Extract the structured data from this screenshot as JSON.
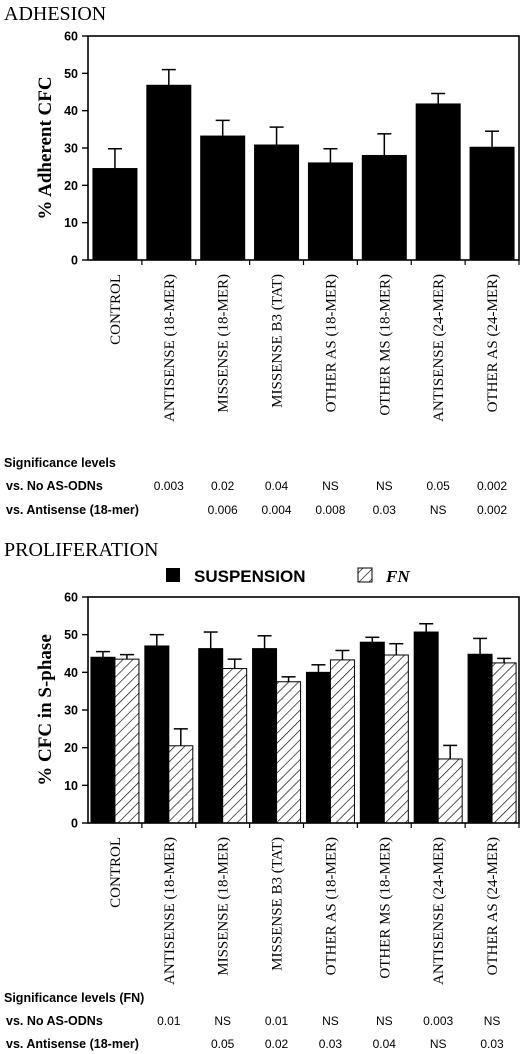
{
  "adhesion": {
    "section_title": "ADHESION",
    "significance": {
      "heading": "Significance levels",
      "rows": [
        {
          "label": "vs. No AS-ODNs",
          "values": [
            "0.003",
            "0.02",
            "0.04",
            "NS",
            "NS",
            "0.05",
            "0.002"
          ]
        },
        {
          "label": "vs. Antisense (18-mer)",
          "values": [
            "",
            "0.006",
            "0.004",
            "0.008",
            "0.03",
            "NS",
            "0.002"
          ]
        }
      ]
    }
  },
  "proliferation": {
    "section_title": "PROLIFERATION",
    "significance": {
      "heading": "Significance levels (FN)",
      "rows": [
        {
          "label": "vs. No AS-ODNs",
          "values": [
            "0.01",
            "NS",
            "0.01",
            "NS",
            "NS",
            "0.003",
            "NS"
          ]
        },
        {
          "label": "vs. Antisense (18-mer)",
          "values": [
            "",
            "0.05",
            "0.02",
            "0.03",
            "0.04",
            "NS",
            "0.03"
          ]
        }
      ]
    }
  },
  "chart_data": [
    {
      "type": "bar",
      "ylabel": "% Adherent CFC",
      "ylim": [
        0,
        60
      ],
      "yticks": [
        0,
        10,
        20,
        30,
        40,
        50,
        60
      ],
      "categories": [
        "CONTROL",
        "ANTISENSE (18-MER)",
        "MISSENSE (18-MER)",
        "MISSENSE B3 (TAT)",
        "OTHER AS (18-MER)",
        "OTHER MS (18-MER)",
        "ANTISENSE (24-MER)",
        "OTHER AS (24-MER)"
      ],
      "series": [
        {
          "values": [
            24.5,
            46.8,
            33.2,
            30.8,
            26.0,
            28.0,
            41.8,
            30.2
          ],
          "errors": [
            5.3,
            4.2,
            4.2,
            4.8,
            3.8,
            5.8,
            2.8,
            4.3
          ],
          "color": "#000000"
        }
      ],
      "grid": false
    },
    {
      "type": "bar",
      "ylabel": "% CFC in S-phase",
      "ylim": [
        0,
        60
      ],
      "yticks": [
        0,
        10,
        20,
        30,
        40,
        50,
        60
      ],
      "legend_position": "top",
      "categories": [
        "CONTROL",
        "ANTISENSE (18-MER)",
        "MISSENSE (18-MER)",
        "MISSENSE B3 (TAT)",
        "OTHER AS (18-MER)",
        "OTHER MS (18-MER)",
        "ANTISENSE (24-MER)",
        "OTHER AS (24-MER)"
      ],
      "series": [
        {
          "name": "SUSPENSION",
          "values": [
            44.0,
            47.0,
            46.3,
            46.3,
            40.0,
            48.0,
            50.7,
            44.8
          ],
          "errors": [
            1.5,
            3.0,
            4.4,
            3.4,
            2.0,
            1.3,
            2.2,
            4.2
          ],
          "color": "#000000",
          "pattern": "solid"
        },
        {
          "name": "FN",
          "values": [
            43.5,
            20.5,
            41.0,
            37.5,
            43.3,
            44.6,
            17.0,
            42.5
          ],
          "errors": [
            1.2,
            4.5,
            2.5,
            1.3,
            2.5,
            3.0,
            3.6,
            1.2
          ],
          "color": "#000000",
          "pattern": "hatched"
        }
      ],
      "grid": false
    }
  ]
}
